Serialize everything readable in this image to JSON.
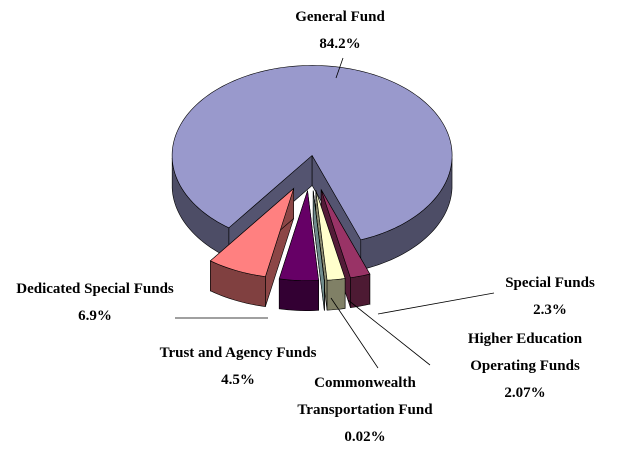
{
  "chart_data": {
    "type": "pie",
    "categories": [
      "General Fund",
      "Special Funds",
      "Higher Education Operating Funds",
      "Commonwealth Transportation Fund",
      "Trust and Agency Funds",
      "Dedicated Special Funds"
    ],
    "values": [
      84.2,
      2.3,
      2.07,
      0.02,
      4.5,
      6.9
    ],
    "value_labels": [
      "84.2%",
      "2.3%",
      "2.07%",
      "0.02%",
      "4.5%",
      "6.9%"
    ],
    "colors": [
      "#9999cc",
      "#993366",
      "#ffffcc",
      "#ccffff",
      "#660066",
      "#ff8080"
    ]
  }
}
